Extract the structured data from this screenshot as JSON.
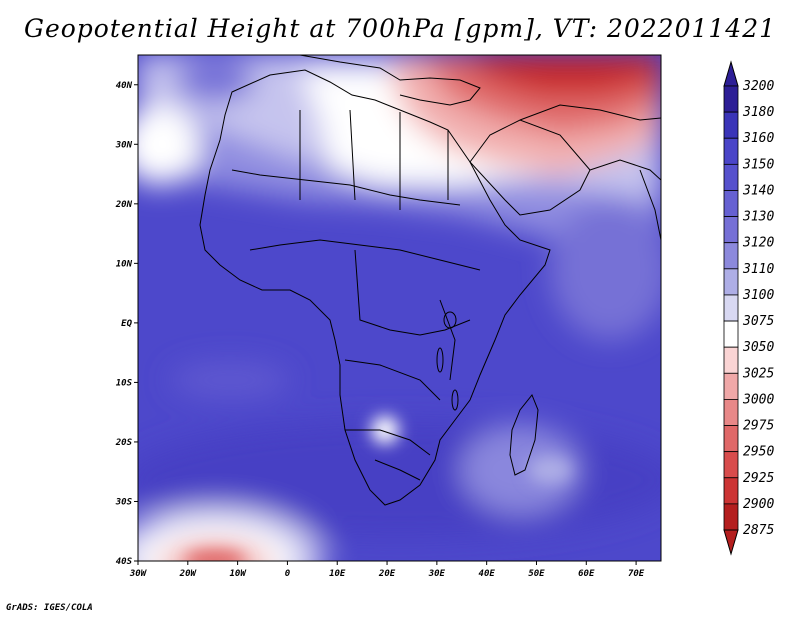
{
  "title": "Geopotential Height at 700hPa [gpm], VT: 2022011421",
  "credit": "GrADS: IGES/COLA",
  "map": {
    "lon_labels": [
      "30W",
      "20W",
      "10W",
      "0",
      "10E",
      "20E",
      "30E",
      "40E",
      "50E",
      "60E",
      "70E"
    ],
    "lat_labels": [
      "40N",
      "30N",
      "20N",
      "10N",
      "EQ",
      "10S",
      "20S",
      "30S",
      "40S"
    ],
    "lon_range": [
      -30,
      75
    ],
    "lat_range": [
      -40,
      45
    ]
  },
  "colorbar": {
    "levels": [
      "3200",
      "3180",
      "3160",
      "3150",
      "3140",
      "3130",
      "3120",
      "3110",
      "3100",
      "3075",
      "3050",
      "3025",
      "3000",
      "2975",
      "2950",
      "2925",
      "2900",
      "2875"
    ],
    "colors": [
      "#2d1e96",
      "#3a34b8",
      "#4a45c8",
      "#5651cd",
      "#6661d2",
      "#7670d6",
      "#8c89dc",
      "#aeaee6",
      "#d8d8f2",
      "#ffffff",
      "#fad4d4",
      "#f0a8a8",
      "#e88888",
      "#e06868",
      "#d84c4c",
      "#cc3434",
      "#b41e1e"
    ]
  },
  "colors": {
    "deep_blue": "#4a44c9",
    "high_red": "#c81e1e"
  }
}
